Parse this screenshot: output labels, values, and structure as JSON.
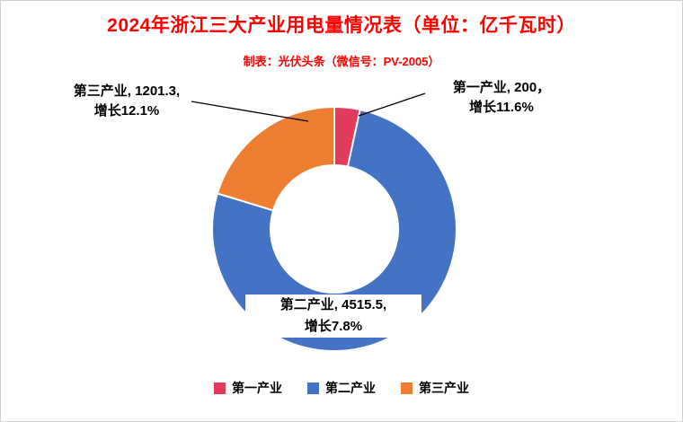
{
  "title": {
    "text": "2024年浙江三大产业用电量情况表（单位：亿千瓦时）",
    "color": "#FF0000"
  },
  "subtitle": {
    "text": "制表：光伏头条（微信号：PV-2005）"
  },
  "chart_data": {
    "type": "pie",
    "subtype": "donut",
    "unit": "亿千瓦时",
    "start_angle_deg": 0,
    "direction": "clockwise",
    "categories": [
      "第一产业",
      "第二产业",
      "第三产业"
    ],
    "values": [
      200,
      4515.5,
      1201.3
    ],
    "growth_pct": [
      11.6,
      7.8,
      12.1
    ],
    "colors": [
      "#E23B5C",
      "#4472C4",
      "#ED7D31"
    ],
    "labels": {
      "primary": {
        "line1": "第一产业, 200，",
        "line2": "增长11.6%"
      },
      "secondary": {
        "line1": "第二产业, 4515.5,",
        "line2": "增长7.8%"
      },
      "tertiary": {
        "line1": "第三产业, 1201.3,",
        "line2": "增长12.1%"
      }
    },
    "legend": [
      "第一产业",
      "第二产业",
      "第三产业"
    ],
    "legend_position": "bottom",
    "grid": false
  }
}
